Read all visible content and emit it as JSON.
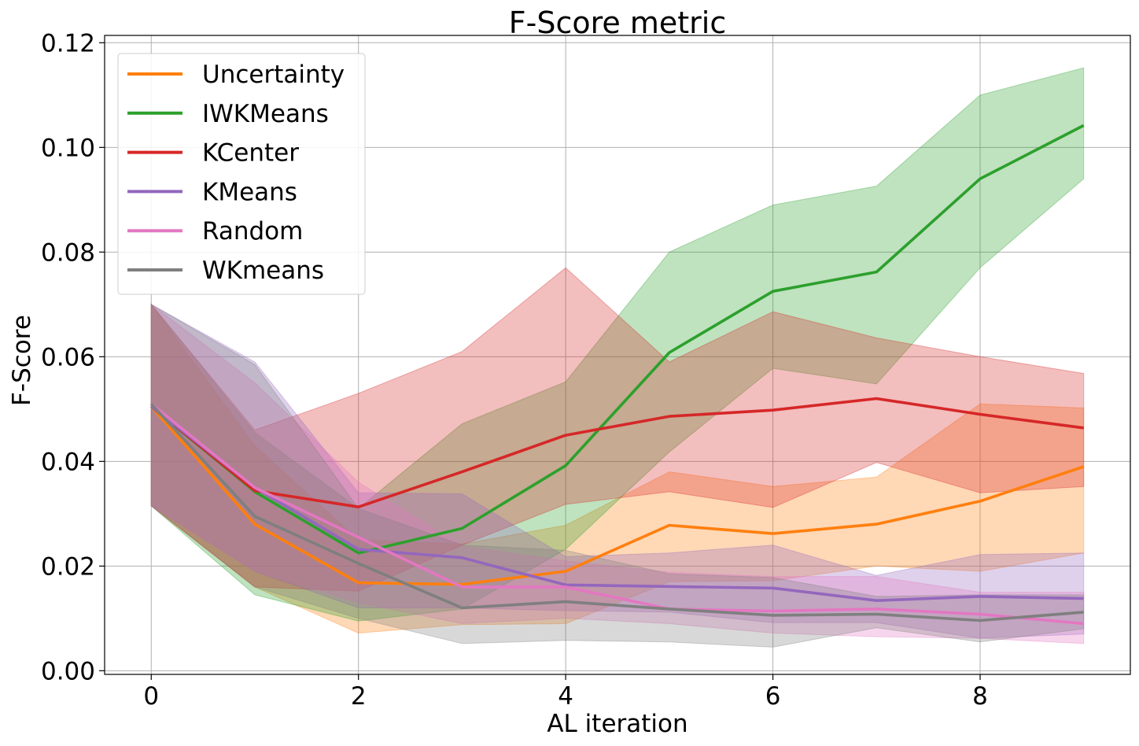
{
  "chart_data": {
    "type": "line",
    "title": "F-Score metric",
    "xlabel": "AL iteration",
    "ylabel": "F-Score",
    "xlim": [
      -0.45,
      9.45
    ],
    "ylim": [
      -0.0007,
      0.1214
    ],
    "xticks": [
      0,
      2,
      4,
      6,
      8
    ],
    "xtick_labels": [
      "0",
      "2",
      "4",
      "6",
      "8"
    ],
    "yticks": [
      0.0,
      0.02,
      0.04,
      0.06,
      0.08,
      0.1,
      0.12
    ],
    "ytick_labels": [
      "0.00",
      "0.02",
      "0.04",
      "0.06",
      "0.08",
      "0.10",
      "0.12"
    ],
    "grid": true,
    "legend_position": "upper-left",
    "x": [
      0,
      1,
      2,
      3,
      4,
      5,
      6,
      7,
      8,
      9
    ],
    "series": [
      {
        "name": "Uncertainty",
        "color": "#ff7f0e",
        "values": [
          0.0505,
          0.028,
          0.0168,
          0.0165,
          0.019,
          0.0278,
          0.0262,
          0.028,
          0.0324,
          0.039
        ],
        "lower": [
          0.0315,
          0.016,
          0.0072,
          0.0088,
          0.009,
          0.017,
          0.0172,
          0.02,
          0.019,
          0.0225
        ],
        "upper": [
          0.07,
          0.043,
          0.025,
          0.0242,
          0.0278,
          0.038,
          0.0352,
          0.037,
          0.051,
          0.0502
        ]
      },
      {
        "name": "IWKMeans",
        "color": "#2ca02c",
        "values": [
          0.0505,
          0.0342,
          0.0225,
          0.0272,
          0.0392,
          0.0608,
          0.0725,
          0.0762,
          0.094,
          0.1042
        ],
        "lower": [
          0.0315,
          0.0145,
          0.0095,
          0.0118,
          0.0232,
          0.0418,
          0.0578,
          0.0548,
          0.077,
          0.094
        ],
        "upper": [
          0.07,
          0.0455,
          0.031,
          0.0472,
          0.0552,
          0.08,
          0.089,
          0.0926,
          0.11,
          0.1152
        ]
      },
      {
        "name": "KCenter",
        "color": "#d62728",
        "values": [
          0.0505,
          0.0344,
          0.0313,
          0.038,
          0.045,
          0.0486,
          0.0498,
          0.052,
          0.049,
          0.0464
        ],
        "lower": [
          0.0315,
          0.016,
          0.0152,
          0.024,
          0.0318,
          0.0342,
          0.0312,
          0.0398,
          0.034,
          0.0352
        ],
        "upper": [
          0.07,
          0.046,
          0.053,
          0.061,
          0.077,
          0.059,
          0.0686,
          0.0636,
          0.06,
          0.0568
        ]
      },
      {
        "name": "KMeans",
        "color": "#9467bd",
        "values": [
          0.0505,
          0.035,
          0.0232,
          0.0216,
          0.0164,
          0.0161,
          0.0158,
          0.0134,
          0.0142,
          0.0138
        ],
        "lower": [
          0.0315,
          0.019,
          0.012,
          0.012,
          0.0115,
          0.0112,
          0.0092,
          0.0092,
          0.0062,
          0.007
        ],
        "upper": [
          0.07,
          0.059,
          0.034,
          0.0338,
          0.0218,
          0.0225,
          0.024,
          0.0182,
          0.0222,
          0.0225
        ]
      },
      {
        "name": "Random",
        "color": "#e377c2",
        "values": [
          0.051,
          0.035,
          0.0255,
          0.016,
          0.016,
          0.0118,
          0.0114,
          0.0118,
          0.0108,
          0.009
        ],
        "lower": [
          0.0315,
          0.019,
          0.013,
          0.009,
          0.01,
          0.009,
          0.0072,
          0.0065,
          0.0062,
          0.0052
        ],
        "upper": [
          0.07,
          0.055,
          0.036,
          0.0238,
          0.021,
          0.0188,
          0.018,
          0.018,
          0.015,
          0.015
        ]
      },
      {
        "name": "WKmeans",
        "color": "#7f7f7f",
        "values": [
          0.051,
          0.0295,
          0.0205,
          0.012,
          0.0132,
          0.0118,
          0.0106,
          0.0108,
          0.0096,
          0.0112
        ],
        "lower": [
          0.0315,
          0.016,
          0.01,
          0.0052,
          0.0058,
          0.0055,
          0.0045,
          0.0082,
          0.0055,
          0.008
        ],
        "upper": [
          0.07,
          0.0585,
          0.031,
          0.024,
          0.023,
          0.0185,
          0.0178,
          0.0142,
          0.0145,
          0.0145
        ]
      }
    ]
  }
}
